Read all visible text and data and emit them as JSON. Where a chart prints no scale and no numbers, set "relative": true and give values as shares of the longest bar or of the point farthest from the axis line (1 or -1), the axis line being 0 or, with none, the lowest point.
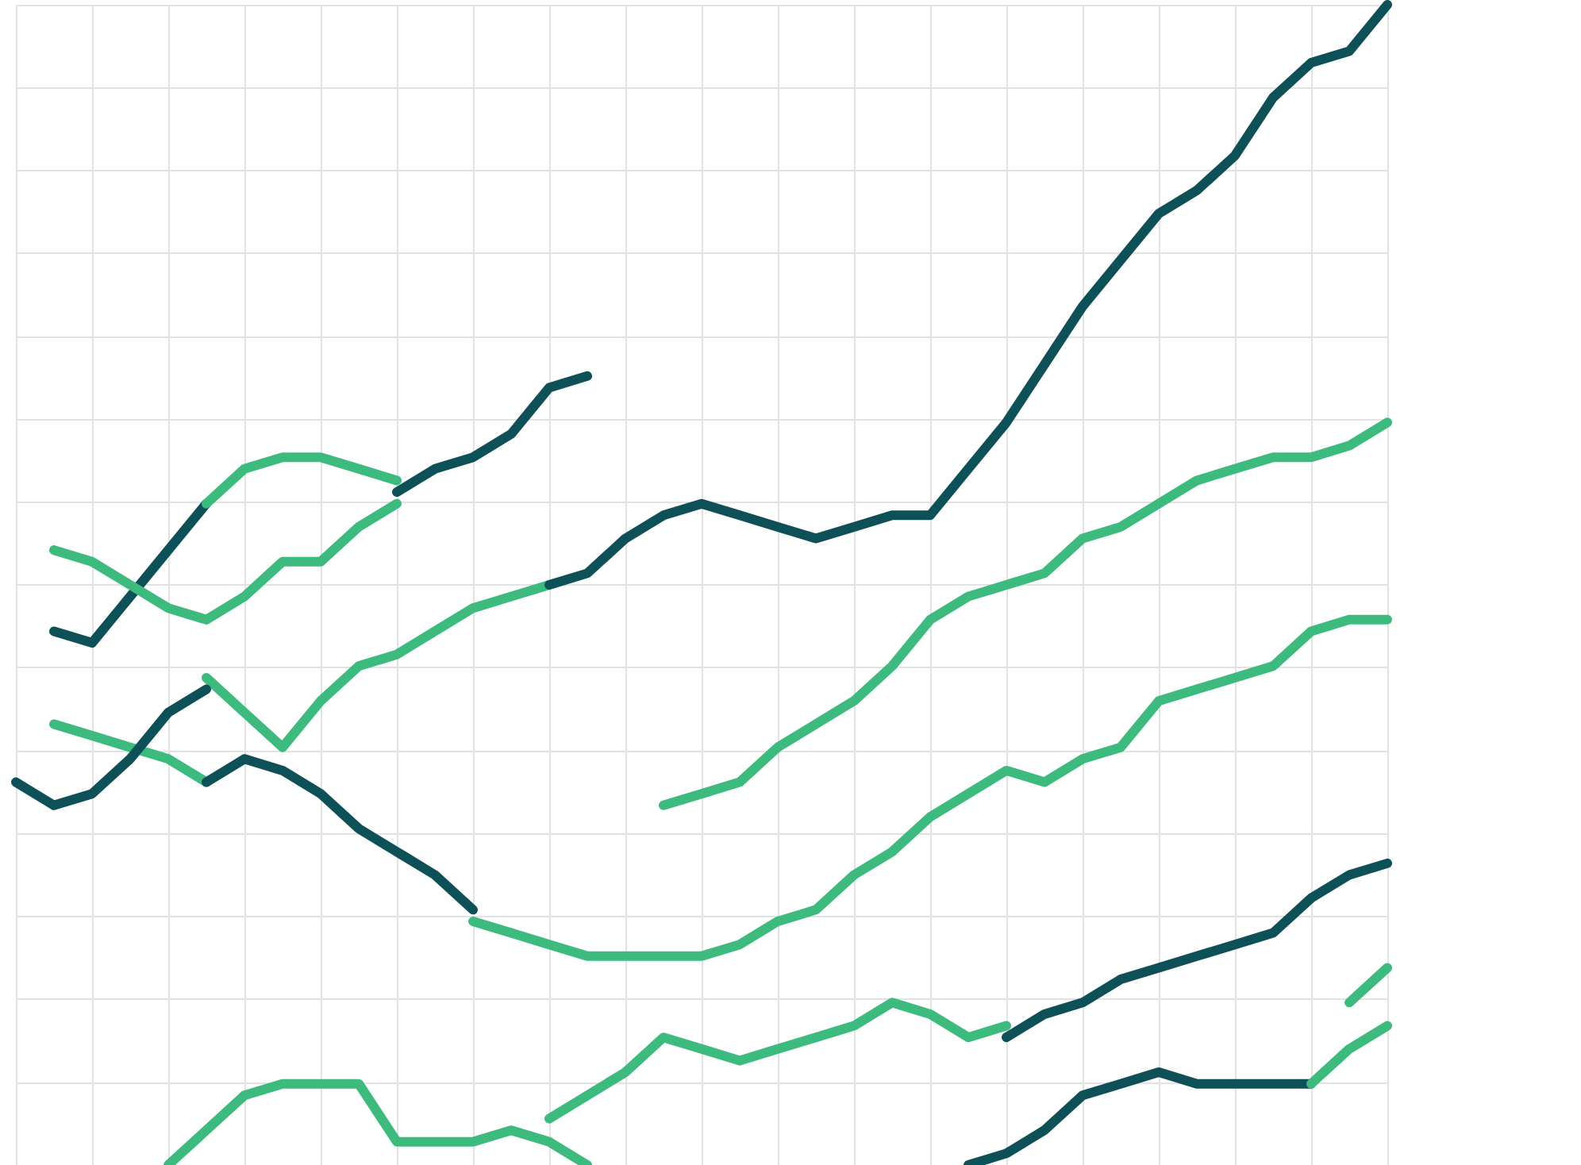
{
  "chart_data": {
    "type": "line",
    "relative": true,
    "grid": true,
    "categories": [
      null,
      null,
      null,
      null,
      null,
      null,
      null,
      null,
      null,
      null,
      null,
      null,
      null,
      null,
      null,
      null,
      null,
      null,
      null,
      null,
      null,
      null,
      null,
      null,
      null,
      null,
      null,
      null,
      null,
      null,
      null,
      null,
      null,
      null,
      null,
      null,
      null
    ],
    "series": [
      {
        "color": "#0e5058",
        "values": [
          null,
          0.46,
          0.45,
          0.49,
          0.53,
          0.57,
          null,
          null,
          null,
          null,
          null,
          null,
          null,
          null,
          null,
          null,
          null,
          null,
          null,
          null,
          null,
          null,
          null,
          null,
          null,
          null,
          null,
          null,
          null,
          null,
          null,
          null,
          null,
          null,
          null,
          null,
          null
        ]
      },
      {
        "color": "#3dba7e",
        "values": [
          null,
          null,
          null,
          null,
          null,
          0.57,
          0.6,
          0.61,
          0.61,
          0.6,
          0.59,
          null,
          null,
          null,
          null,
          null,
          null,
          null,
          null,
          null,
          null,
          null,
          null,
          null,
          null,
          null,
          null,
          null,
          null,
          null,
          null,
          null,
          null,
          null,
          null,
          null,
          null
        ]
      },
      {
        "color": "#0e5058",
        "values": [
          null,
          null,
          null,
          null,
          null,
          null,
          null,
          null,
          null,
          null,
          0.58,
          0.6,
          0.61,
          0.63,
          0.67,
          0.68,
          null,
          null,
          null,
          null,
          null,
          null,
          null,
          null,
          null,
          null,
          null,
          null,
          null,
          null,
          null,
          null,
          null,
          null,
          null,
          null,
          null
        ]
      },
      {
        "color": "#3dba7e",
        "values": [
          null,
          0.53,
          0.52,
          0.5,
          0.48,
          0.47,
          0.49,
          0.52,
          0.52,
          0.55,
          0.57,
          null,
          null,
          null,
          null,
          null,
          null,
          null,
          null,
          null,
          null,
          null,
          null,
          null,
          null,
          null,
          null,
          null,
          null,
          null,
          null,
          null,
          null,
          null,
          null,
          null,
          null
        ]
      },
      {
        "color": "#3dba7e",
        "values": [
          null,
          null,
          null,
          null,
          null,
          0.42,
          0.39,
          0.36,
          0.4,
          0.43,
          0.44,
          0.46,
          0.48,
          0.49,
          0.5,
          null,
          null,
          null,
          null,
          null,
          null,
          null,
          null,
          null,
          null,
          null,
          null,
          null,
          null,
          null,
          null,
          null,
          null,
          null,
          null,
          null,
          null
        ]
      },
      {
        "color": "#0e5058",
        "values": [
          null,
          null,
          null,
          null,
          null,
          null,
          null,
          null,
          null,
          null,
          null,
          null,
          null,
          null,
          0.5,
          0.51,
          0.54,
          0.56,
          0.57,
          0.56,
          0.55,
          0.54,
          0.55,
          0.56,
          0.56,
          0.6,
          0.64,
          0.69,
          0.74,
          0.78,
          0.82,
          0.84,
          0.87,
          0.92,
          0.95,
          0.96,
          1
        ]
      },
      {
        "color": "#3dba7e",
        "values": [
          null,
          null,
          null,
          null,
          null,
          null,
          null,
          null,
          null,
          null,
          null,
          null,
          null,
          null,
          null,
          null,
          null,
          0.31,
          0.32,
          0.33,
          0.36,
          0.38,
          0.4,
          0.43,
          0.47,
          0.49,
          0.5,
          0.51,
          0.54,
          0.55,
          0.57,
          0.59,
          0.6,
          0.61,
          0.61,
          0.62,
          0.64
        ]
      },
      {
        "color": "#3dba7e",
        "values": [
          null,
          0.38,
          0.37,
          0.36,
          0.35,
          0.33,
          null,
          null,
          null,
          null,
          null,
          null,
          null,
          null,
          null,
          null,
          null,
          null,
          null,
          null,
          null,
          null,
          null,
          null,
          null,
          null,
          null,
          null,
          null,
          null,
          null,
          null,
          null,
          null,
          null,
          null,
          null
        ]
      },
      {
        "color": "#0e5058",
        "values": [
          0.33,
          0.31,
          0.32,
          0.35,
          0.39,
          0.41,
          null,
          null,
          null,
          null,
          null,
          null,
          null,
          null,
          null,
          null,
          null,
          null,
          null,
          null,
          null,
          null,
          null,
          null,
          null,
          null,
          null,
          null,
          null,
          null,
          null,
          null,
          null,
          null,
          null,
          null,
          null
        ]
      },
      {
        "color": "#0e5058",
        "values": [
          null,
          null,
          null,
          null,
          null,
          0.33,
          0.35,
          0.34,
          0.32,
          0.29,
          0.27,
          0.25,
          0.22,
          null,
          null,
          null,
          null,
          null,
          null,
          null,
          null,
          null,
          null,
          null,
          null,
          null,
          null,
          null,
          null,
          null,
          null,
          null,
          null,
          null,
          null,
          null,
          null
        ]
      },
      {
        "color": "#3dba7e",
        "values": [
          null,
          null,
          null,
          null,
          null,
          null,
          null,
          null,
          null,
          null,
          null,
          null,
          0.21,
          0.2,
          0.19,
          0.18,
          0.18,
          0.18,
          0.18,
          0.19,
          0.21,
          0.22,
          0.25,
          0.27,
          0.3,
          0.32,
          0.34,
          0.33,
          0.35,
          0.36,
          0.4,
          0.41,
          0.42,
          0.43,
          0.46,
          0.47,
          0.47
        ]
      },
      {
        "color": "#3dba7e",
        "values": [
          null,
          null,
          null,
          null,
          null,
          null,
          null,
          null,
          null,
          null,
          null,
          null,
          null,
          null,
          0.04,
          0.06,
          0.08,
          0.11,
          0.1,
          0.09,
          0.1,
          0.11,
          0.12,
          0.14,
          0.13,
          0.11,
          0.12,
          null,
          null,
          null,
          null,
          null,
          null,
          null,
          null,
          null,
          null
        ]
      },
      {
        "color": "#0e5058",
        "values": [
          null,
          null,
          null,
          null,
          null,
          null,
          null,
          null,
          null,
          null,
          null,
          null,
          null,
          null,
          null,
          null,
          null,
          null,
          null,
          null,
          null,
          null,
          null,
          null,
          null,
          null,
          0.11,
          0.13,
          0.14,
          0.16,
          0.17,
          0.18,
          0.19,
          0.2,
          0.23,
          0.25,
          0.26
        ]
      },
      {
        "color": "#3dba7e",
        "values": [
          null,
          null,
          null,
          null,
          0,
          0.03,
          0.06,
          0.07,
          0.07,
          0.07,
          0.02,
          0.02,
          0.02,
          0.03,
          0.02,
          0,
          null,
          null,
          null,
          null,
          null,
          null,
          null,
          null,
          null,
          null,
          null,
          null,
          null,
          null,
          null,
          null,
          null,
          null,
          null,
          null,
          null
        ]
      },
      {
        "color": "#0e5058",
        "values": [
          null,
          null,
          null,
          null,
          null,
          null,
          null,
          null,
          null,
          null,
          null,
          null,
          null,
          null,
          null,
          null,
          null,
          null,
          null,
          null,
          null,
          null,
          null,
          null,
          null,
          0,
          0.01,
          0.03,
          0.06,
          0.07,
          0.08,
          0.07,
          0.07,
          0.07,
          0.07,
          null,
          null
        ]
      },
      {
        "color": "#3dba7e",
        "values": [
          null,
          null,
          null,
          null,
          null,
          null,
          null,
          null,
          null,
          null,
          null,
          null,
          null,
          null,
          null,
          null,
          null,
          null,
          null,
          null,
          null,
          null,
          null,
          null,
          null,
          null,
          null,
          null,
          null,
          null,
          null,
          null,
          null,
          null,
          0.07,
          0.1,
          0.12
        ]
      },
      {
        "color": "#3dba7e",
        "values": [
          null,
          null,
          null,
          null,
          null,
          null,
          null,
          null,
          null,
          null,
          null,
          null,
          null,
          null,
          null,
          null,
          null,
          null,
          null,
          null,
          null,
          null,
          null,
          null,
          null,
          null,
          null,
          null,
          null,
          null,
          null,
          null,
          null,
          null,
          null,
          0.14,
          0.17
        ]
      }
    ]
  }
}
